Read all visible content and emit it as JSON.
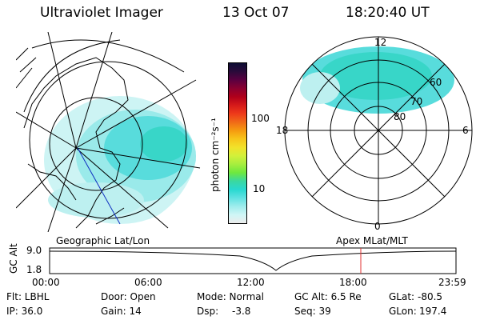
{
  "header": {
    "instrument": "Ultraviolet Imager",
    "date": "13 Oct 07",
    "time": "18:20:40 UT"
  },
  "colorbar": {
    "label": "photon cm⁻²s⁻¹",
    "ticks": [
      "100",
      "10"
    ],
    "colors": [
      "#0d0d33",
      "#2a0a3a",
      "#5a0040",
      "#8a0030",
      "#b0001a",
      "#d61a1a",
      "#ee3a1a",
      "#f06a18",
      "#f59a10",
      "#f7c51a",
      "#f2e22a",
      "#d2f03a",
      "#a6ee3e",
      "#6ee83e",
      "#3ad8a0",
      "#28d8d0",
      "#60e2e2",
      "#9eecec",
      "#cff6f6",
      "#ececec"
    ]
  },
  "polar_plot": {
    "mlt_labels": {
      "top": "12",
      "left": "18",
      "right": "6",
      "bottom": "0"
    },
    "lat_labels": [
      "60",
      "70",
      "80"
    ]
  },
  "timeline": {
    "left_label": "Geographic Lat/Lon",
    "right_label": "Apex MLat/MLT",
    "axis_label": "GC Alt",
    "y_ticks": [
      "9.0",
      "1.8"
    ],
    "x_ticks": [
      "00:00",
      "06:00",
      "12:00",
      "18:00",
      "23:59"
    ],
    "marker_time": "18:20:40",
    "marker_color": "#e03030"
  },
  "status": {
    "filter": "Flt: LBHL",
    "ip": "IP: 36.0",
    "door": "Door: Open",
    "gain": "Gain: 14",
    "mode": "Mode: Normal",
    "dsp_label": "Dsp:",
    "dsp_value": "-3.8",
    "gc_alt": "GC Alt: 6.5 Re",
    "seq": "Seq: 39",
    "glat_label": "GLat:",
    "glat_value": "-80.5",
    "glon_label": "GLon:",
    "glon_value": "197.4"
  }
}
